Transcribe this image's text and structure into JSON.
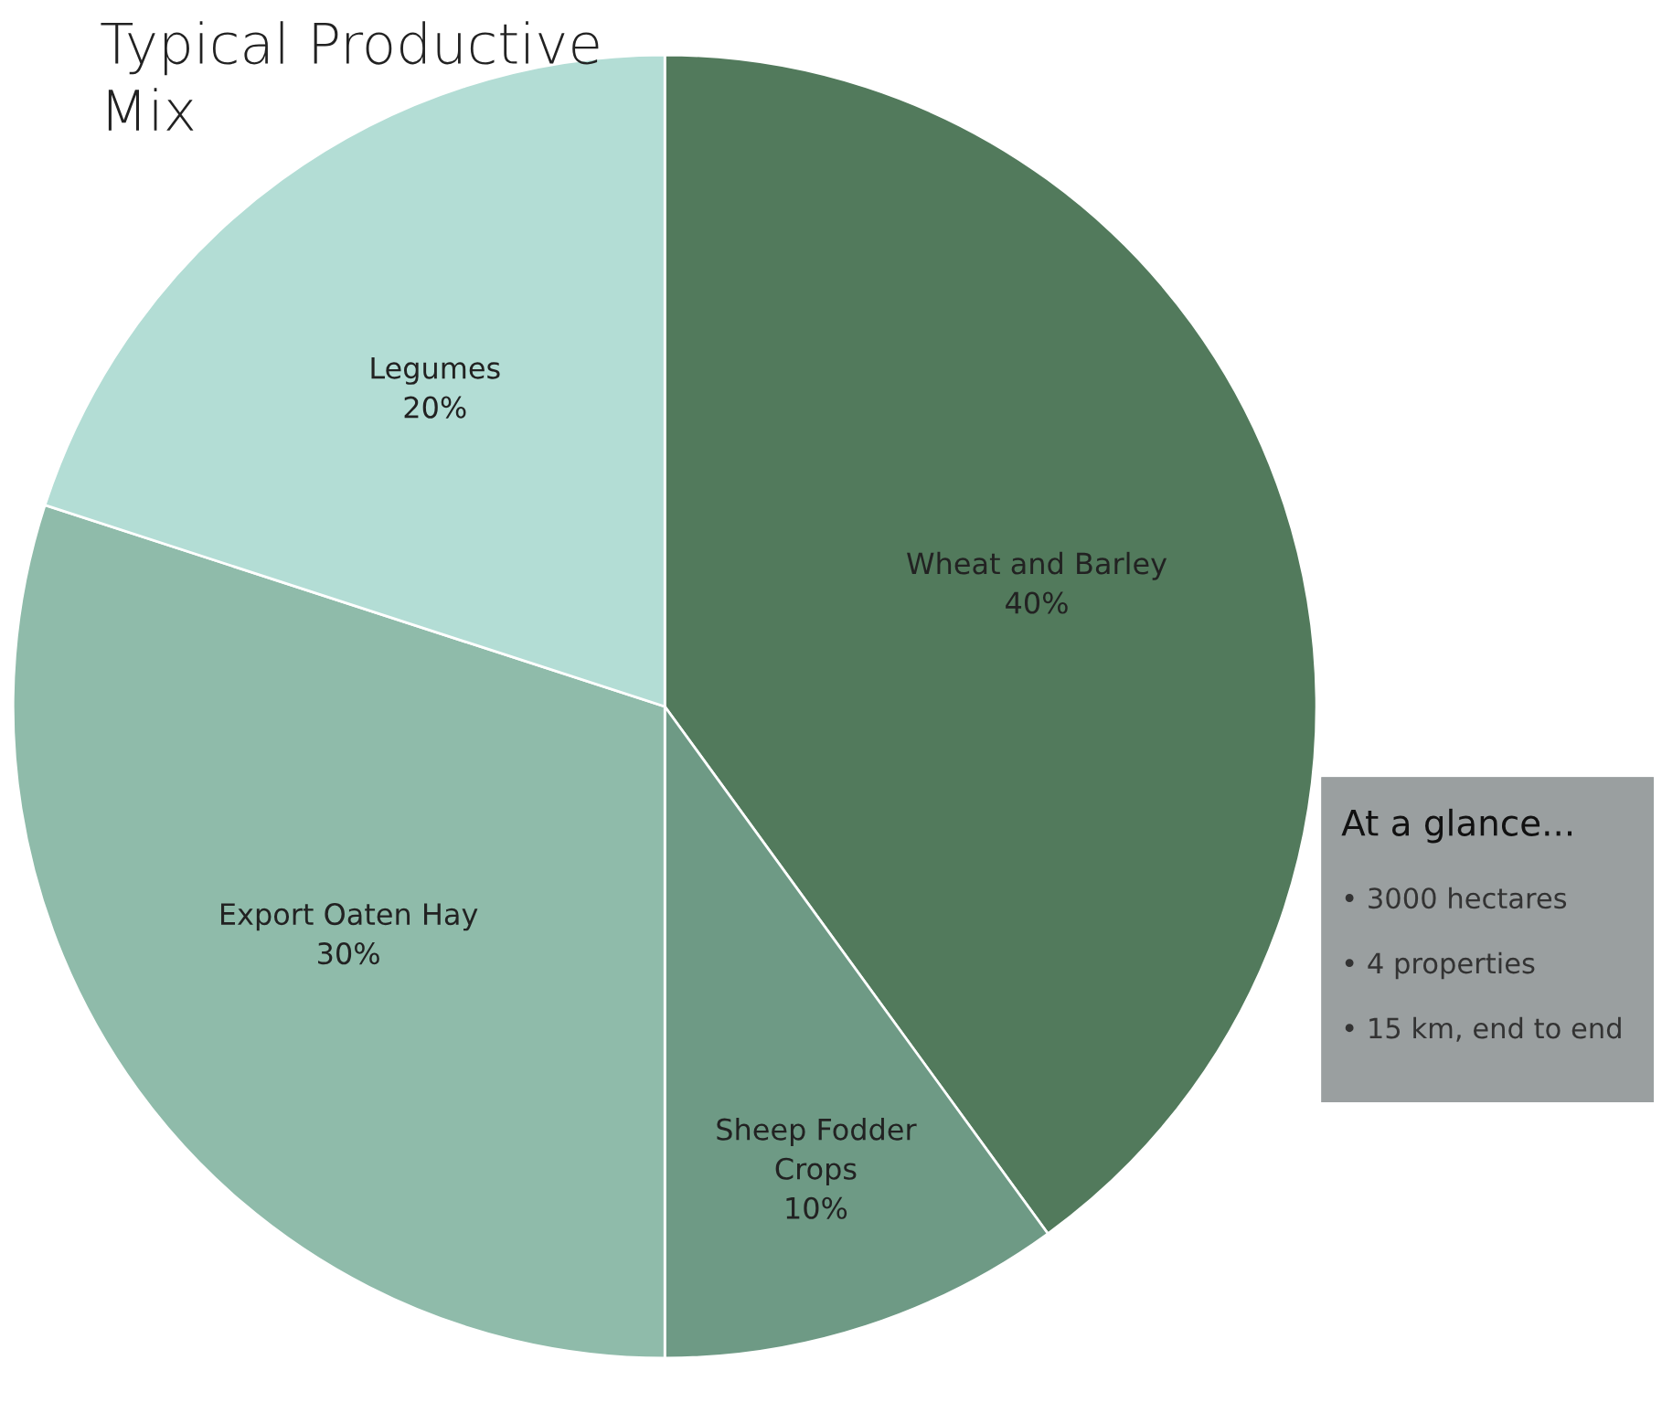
{
  "chart_data": {
    "type": "pie",
    "title": "Typical Productive\nMix",
    "categories": [
      "Wheat and Barley",
      "Sheep Fodder\nCrops",
      "Export Oaten Hay",
      "Legumes"
    ],
    "values": [
      40,
      10,
      30,
      20
    ],
    "value_labels": [
      "40%",
      "10%",
      "30%",
      "20%"
    ],
    "colors": [
      "#527a5c",
      "#6e9a85",
      "#8fbbaa",
      "#b3ddd5"
    ],
    "legend": false,
    "annotations": [
      "At a glance...",
      "• 3000 hectares",
      "• 4 properties",
      "• 15 km, end to end"
    ]
  }
}
